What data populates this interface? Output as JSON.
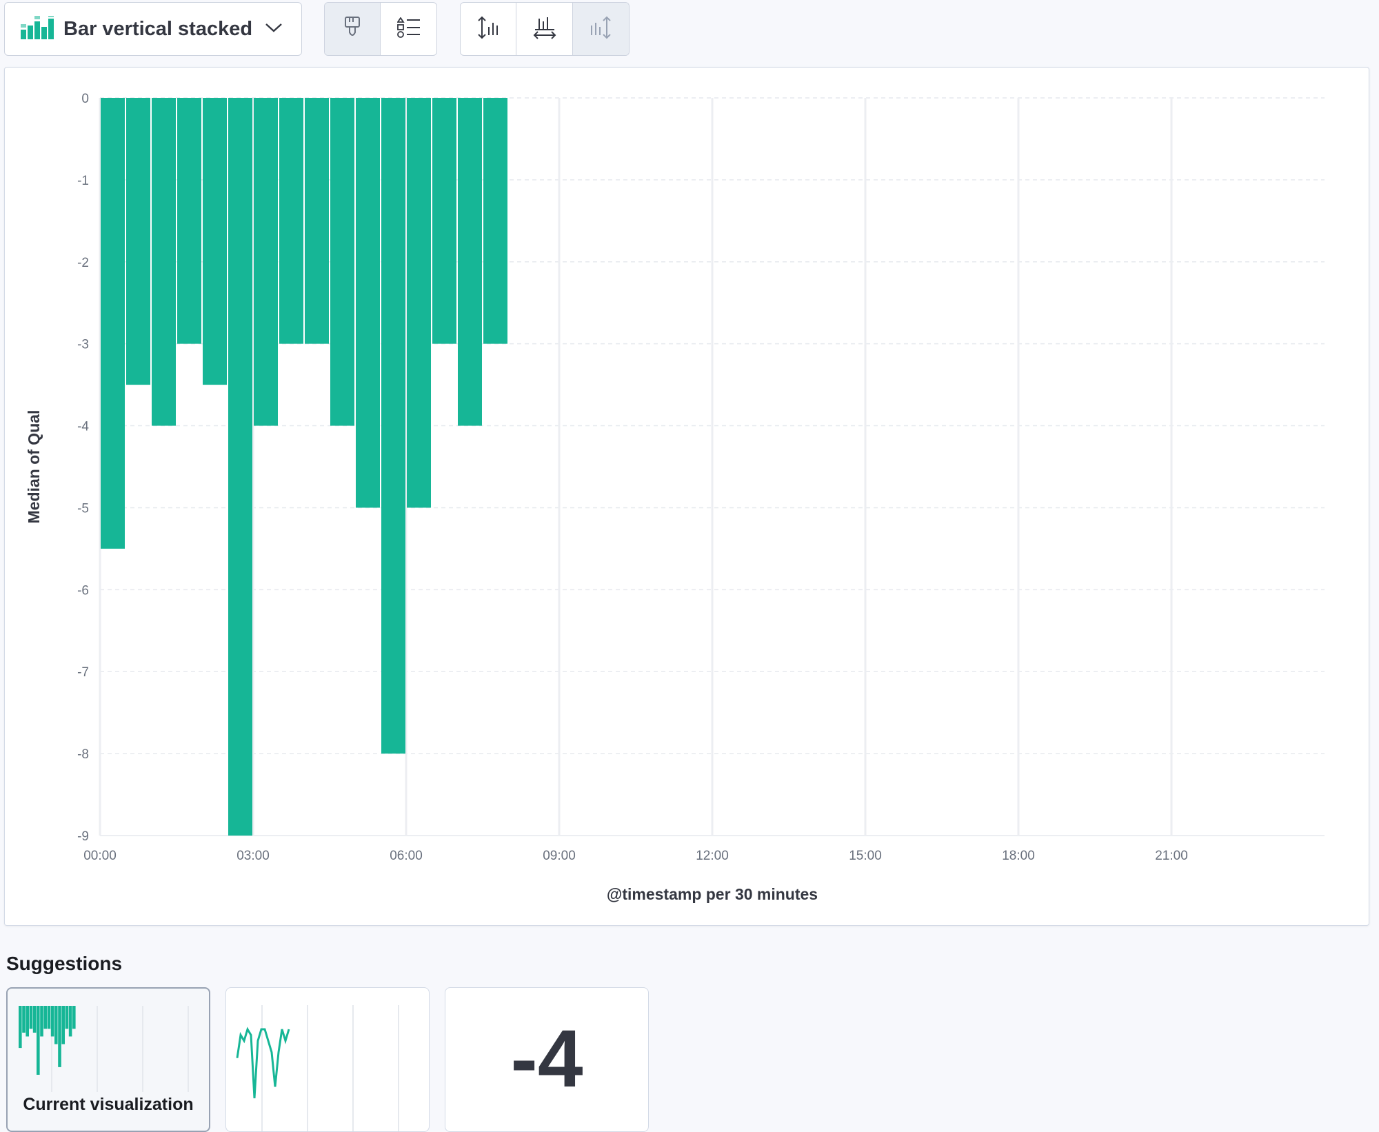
{
  "toolbar": {
    "chart_type_label": "Bar vertical stacked",
    "chart_type_icon": "bar-vertical-stacked-icon",
    "style_button_icon": "paintbrush-icon",
    "legend_button_icon": "legend-list-icon",
    "axis_buttons": [
      {
        "icon": "left-axis-icon",
        "active": false
      },
      {
        "icon": "bottom-axis-icon",
        "active": false
      },
      {
        "icon": "right-axis-icon",
        "active": true
      }
    ]
  },
  "chart_data": {
    "type": "bar",
    "stacked": true,
    "xlabel": "@timestamp per 30 minutes",
    "ylabel": "Median of Qual",
    "ylim": [
      -9,
      0
    ],
    "yticks": [
      "0",
      "-1",
      "-2",
      "-3",
      "-4",
      "-5",
      "-6",
      "-7",
      "-8",
      "-9"
    ],
    "xticks": [
      "00:00",
      "03:00",
      "06:00",
      "09:00",
      "12:00",
      "15:00",
      "18:00",
      "21:00"
    ],
    "xlim": [
      "00:00",
      "24:00"
    ],
    "bar_interval": "30 minutes",
    "categories": [
      "00:00",
      "00:30",
      "01:00",
      "01:30",
      "02:00",
      "02:30",
      "03:00",
      "03:30",
      "04:00",
      "04:30",
      "05:00",
      "05:30",
      "06:00",
      "06:30",
      "07:00",
      "07:30"
    ],
    "values": [
      -5.5,
      -3.5,
      -4,
      -3,
      -3.5,
      -9,
      -4,
      -3,
      -3,
      -4,
      -5,
      -8,
      -5,
      -3,
      -4,
      -3
    ],
    "series_color": "#16b696",
    "grid": true,
    "legend": "none"
  },
  "suggestions": {
    "title": "Suggestions",
    "cards": [
      {
        "caption": "Current visualization",
        "kind": "bar",
        "selected": true
      },
      {
        "caption": "",
        "kind": "line",
        "selected": false
      },
      {
        "caption": "",
        "kind": "metric",
        "value": "-4",
        "selected": false
      }
    ]
  },
  "colors": {
    "accent": "#16b696",
    "text": "#343741",
    "border": "#d3dae6",
    "background": "#f7f8fc"
  }
}
